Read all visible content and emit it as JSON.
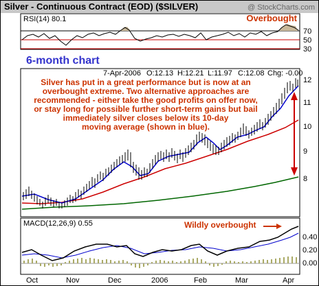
{
  "header": {
    "title": "Silver - Continuous Contract (EOD) ($SILVER)",
    "copyright": "@ StockCharts.com"
  },
  "rsi_panel": {
    "label": "RSI(14) 80.1",
    "annotation": "Overbought",
    "y_ticks": [
      "70",
      "50",
      "30"
    ]
  },
  "period_label": "6-month chart",
  "price_panel": {
    "quote": {
      "date": "7-Apr-2006",
      "open": "O:12.13",
      "high": "H:12.21",
      "low": "L:11.97",
      "close": "C:12.08",
      "change": "Chg: -0.00"
    },
    "commentary": [
      "Silver has put in a great performance but is now at an",
      "overbought extreme. Two alternative approaches are",
      "recommended - either take the good profits on offer now,",
      "or stay long for possible further short-term gains but bail",
      "immediately silver closes below its 10-day",
      "moving average (shown in blue)."
    ],
    "y_ticks": [
      "12",
      "11",
      "10",
      "9",
      "8"
    ]
  },
  "macd_panel": {
    "label": "MACD(12,26,9) 0.55",
    "annotation": "Wildly overbought",
    "y_ticks": [
      "0.40",
      "0.20",
      "0.00"
    ]
  },
  "x_axis": {
    "labels": [
      "Oct",
      "Nov",
      "Dec",
      "2006",
      "Feb",
      "Mar",
      "Apr"
    ]
  },
  "colors": {
    "title_bg": "#c8c8c8",
    "price_up": "#000000",
    "ma_fast": "#0000cc",
    "ma_mid": "#cc0000",
    "ma_slow": "#006600",
    "annotation": "#cc3300",
    "period_label": "#3333cc",
    "rsi_fill": "#c8b89a",
    "macd_hist": "#aaaa66"
  },
  "chart_data": [
    {
      "type": "line",
      "name": "RSI(14)",
      "x": [
        "Oct",
        "Nov",
        "Dec",
        "2006",
        "Feb",
        "Mar",
        "Apr"
      ],
      "values": [
        55,
        48,
        60,
        58,
        52,
        62,
        80.1
      ],
      "ylim": [
        20,
        85
      ],
      "reference_lines": [
        70,
        50,
        30
      ]
    },
    {
      "type": "line",
      "name": "Silver price",
      "x": [
        "Oct",
        "Nov",
        "Dec",
        "2006",
        "Feb",
        "Mar",
        "Apr"
      ],
      "values": [
        7.5,
        7.7,
        8.6,
        9.0,
        9.4,
        10.1,
        12.08
      ],
      "ylim": [
        7.4,
        12.4
      ],
      "moving_averages": {
        "blue_10_day": [
          7.5,
          7.6,
          8.5,
          8.9,
          9.3,
          9.9,
          11.7
        ],
        "red": [
          7.4,
          7.5,
          8.0,
          8.5,
          8.9,
          9.3,
          10.1
        ],
        "green": [
          7.1,
          7.2,
          7.4,
          7.6,
          7.8,
          8.0,
          8.3
        ]
      }
    },
    {
      "type": "line",
      "name": "MACD(12,26,9)",
      "x": [
        "Oct",
        "Nov",
        "Dec",
        "2006",
        "Feb",
        "Mar",
        "Apr"
      ],
      "values": [
        0.1,
        0.05,
        0.2,
        0.18,
        0.15,
        0.22,
        0.55
      ],
      "ylim": [
        -0.15,
        0.6
      ]
    }
  ]
}
